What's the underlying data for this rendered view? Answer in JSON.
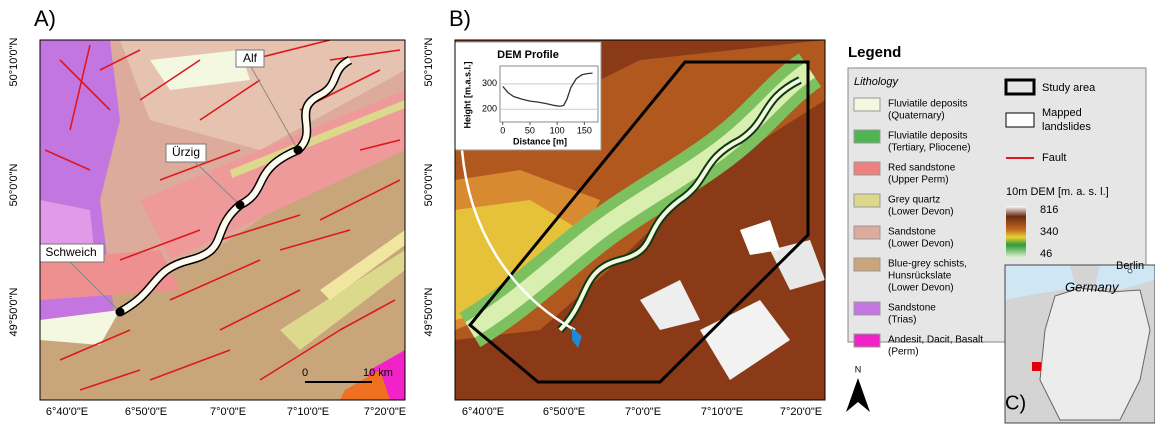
{
  "panel_a": {
    "label": "A)",
    "lat_labels": [
      "50°10'0\"N",
      "50°0'0\"N",
      "49°50'0\"N"
    ],
    "lon_labels": [
      "6°40'0\"E",
      "6°50'0\"E",
      "7°0'0\"E",
      "7°10'0\"E",
      "7°20'0\"E"
    ],
    "places": [
      "Alf",
      "Ürzig",
      "Schweich"
    ],
    "scale": [
      "0",
      "10 km"
    ]
  },
  "panel_b": {
    "label": "B)",
    "lat_labels": [
      "50°10'0\"N",
      "50°0'0\"N",
      "49°50'0\"N"
    ],
    "lon_labels": [
      "6°40'0\"E",
      "6°50'0\"E",
      "7°0'0\"E",
      "7°10'0\"E",
      "7°20'0\"E"
    ],
    "profile": {
      "title": "DEM Profile",
      "x_label": "Distance [m]",
      "y_label": "Height [m.a.s.l.]",
      "x": [
        0,
        10,
        20,
        35,
        50,
        65,
        80,
        95,
        105,
        112,
        118,
        125,
        135,
        145,
        155,
        165
      ],
      "y": [
        290,
        265,
        250,
        240,
        232,
        228,
        222,
        215,
        212,
        215,
        240,
        285,
        320,
        335,
        340,
        342
      ],
      "xlim": [
        -5,
        175
      ],
      "ylim": [
        150,
        370
      ],
      "xticks": [
        0,
        50,
        100,
        150
      ],
      "yticks": [
        200,
        300
      ]
    }
  },
  "legend": {
    "title": "Legend",
    "lithology_title": "Lithology",
    "lithology": [
      {
        "lines": [
          "Fluviatile deposits",
          "(Quaternary)"
        ],
        "color": "#f4f8e0"
      },
      {
        "lines": [
          "Fluviatile deposits",
          "(Tertiary, Pliocene)"
        ],
        "color": "#4fb552"
      },
      {
        "lines": [
          "Red sandstone",
          "(Upper Perm)"
        ],
        "color": "#ef8080"
      },
      {
        "lines": [
          "Grey quartz",
          "(Lower Devon)"
        ],
        "color": "#dcd98c"
      },
      {
        "lines": [
          "Sandstone",
          "(Lower Devon)"
        ],
        "color": "#dcab9c"
      },
      {
        "lines": [
          "Blue-grey schists,",
          "Hunsrückslate",
          "(Lower Devon)"
        ],
        "color": "#c9a57b"
      },
      {
        "lines": [
          "Sandstone",
          "(Trias)"
        ],
        "color": "#c476e0"
      },
      {
        "lines": [
          "Andesit, Dacit, Basalt",
          "(Perm)"
        ],
        "color": "#f022c8"
      }
    ],
    "study_area": "Study area",
    "landslides": [
      "Mapped",
      "landslides"
    ],
    "fault": "Fault",
    "dem_title": "10m DEM [m. a. s. l.]",
    "dem_values": [
      "816",
      "340",
      "46"
    ]
  },
  "panel_c": {
    "label": "C)",
    "country": "Germany",
    "city": "Berlin"
  },
  "north": "N"
}
